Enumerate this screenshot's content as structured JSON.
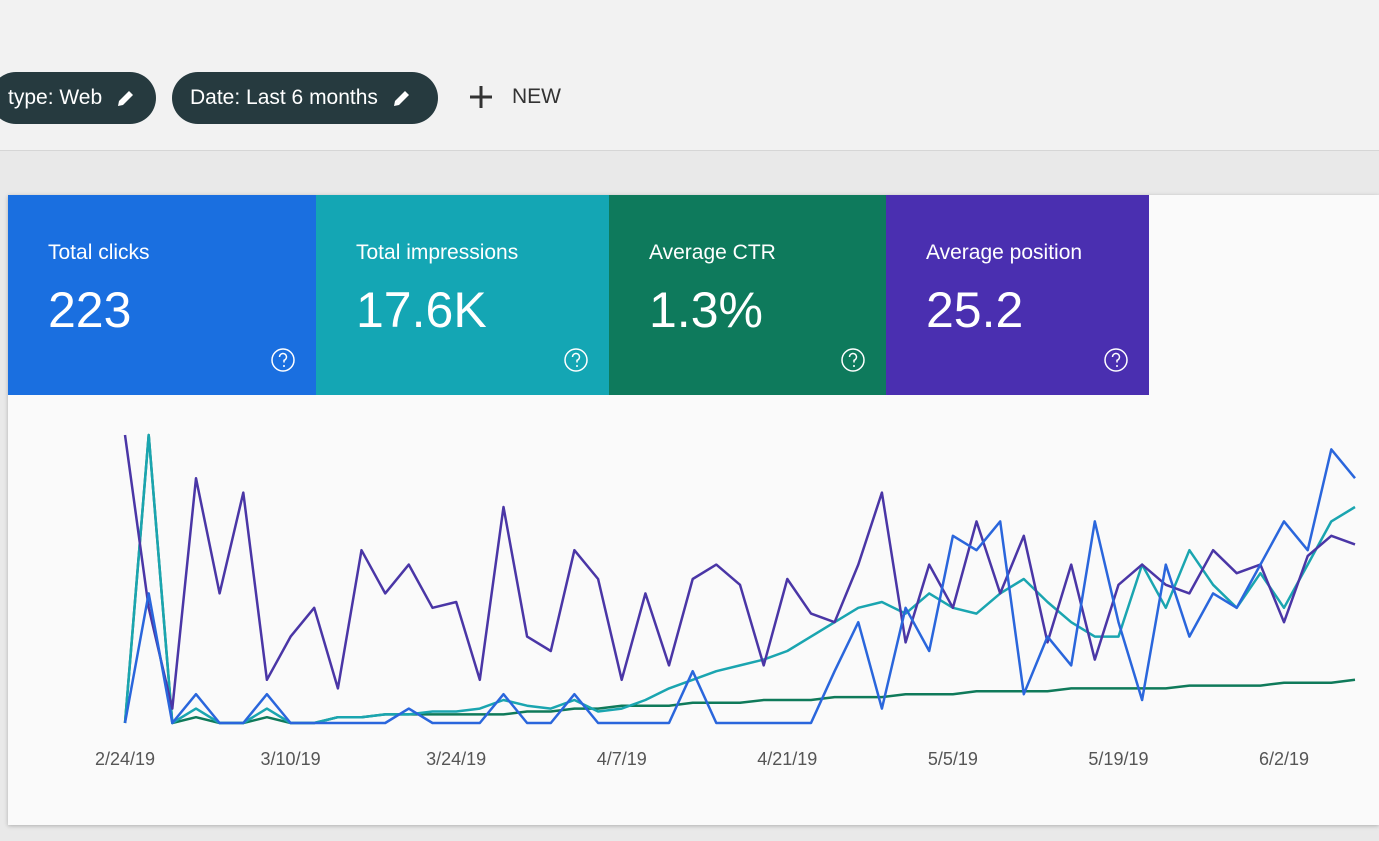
{
  "filters": [
    {
      "label": "type: Web"
    },
    {
      "label": "Date: Last 6 months"
    }
  ],
  "new_button": "NEW",
  "metrics": [
    {
      "label": "Total clicks",
      "value": "223",
      "color": "#1a6fe0"
    },
    {
      "label": "Total impressions",
      "value": "17.6K",
      "color": "#14a6b4"
    },
    {
      "label": "Average CTR",
      "value": "1.3%",
      "color": "#0e7a5c"
    },
    {
      "label": "Average position",
      "value": "25.2",
      "color": "#4a2fb0"
    }
  ],
  "chart_data": {
    "type": "line",
    "xlim": [
      0,
      52
    ],
    "ylim": [
      0,
      100
    ],
    "xticks": [
      {
        "value": 0,
        "label": "2/24/19"
      },
      {
        "value": 7,
        "label": "3/10/19"
      },
      {
        "value": 14,
        "label": "3/24/19"
      },
      {
        "value": 21,
        "label": "4/7/19"
      },
      {
        "value": 28,
        "label": "4/21/19"
      },
      {
        "value": 35,
        "label": "5/5/19"
      },
      {
        "value": 42,
        "label": "5/19/19"
      },
      {
        "value": 49,
        "label": "6/2/19"
      }
    ],
    "series": [
      {
        "color": "#0f7a5a",
        "values": [
          0,
          100,
          0,
          2,
          0,
          0,
          2,
          0,
          0,
          2,
          2,
          3,
          3,
          3,
          3,
          3,
          3,
          4,
          4,
          5,
          5,
          6,
          6,
          6,
          7,
          7,
          7,
          8,
          8,
          8,
          9,
          9,
          9,
          10,
          10,
          10,
          11,
          11,
          11,
          11,
          12,
          12,
          12,
          12,
          12,
          13,
          13,
          13,
          13,
          14,
          14,
          14,
          15
        ]
      },
      {
        "color": "#1aa5b0",
        "values": [
          0,
          100,
          0,
          5,
          0,
          0,
          5,
          0,
          0,
          2,
          2,
          3,
          3,
          4,
          4,
          5,
          8,
          6,
          5,
          8,
          4,
          5,
          8,
          12,
          15,
          18,
          20,
          22,
          25,
          30,
          35,
          40,
          42,
          38,
          45,
          40,
          38,
          45,
          50,
          42,
          35,
          30,
          30,
          55,
          40,
          60,
          48,
          40,
          52,
          40,
          55,
          70,
          75
        ]
      },
      {
        "color": "#4a36a6",
        "values": [
          100,
          40,
          5,
          85,
          45,
          80,
          15,
          30,
          40,
          12,
          60,
          45,
          55,
          40,
          42,
          15,
          75,
          30,
          25,
          60,
          50,
          15,
          45,
          20,
          50,
          55,
          48,
          20,
          50,
          38,
          35,
          55,
          80,
          28,
          55,
          40,
          70,
          45,
          65,
          28,
          55,
          22,
          48,
          55,
          48,
          45,
          60,
          52,
          55,
          35,
          58,
          65,
          62
        ]
      },
      {
        "color": "#2a66dc",
        "values": [
          0,
          45,
          0,
          10,
          0,
          0,
          10,
          0,
          0,
          0,
          0,
          0,
          5,
          0,
          0,
          0,
          10,
          0,
          0,
          10,
          0,
          0,
          0,
          0,
          18,
          0,
          0,
          0,
          0,
          0,
          18,
          35,
          5,
          40,
          25,
          65,
          60,
          70,
          10,
          30,
          20,
          70,
          35,
          8,
          55,
          30,
          45,
          40,
          55,
          70,
          60,
          95,
          85
        ]
      }
    ]
  }
}
